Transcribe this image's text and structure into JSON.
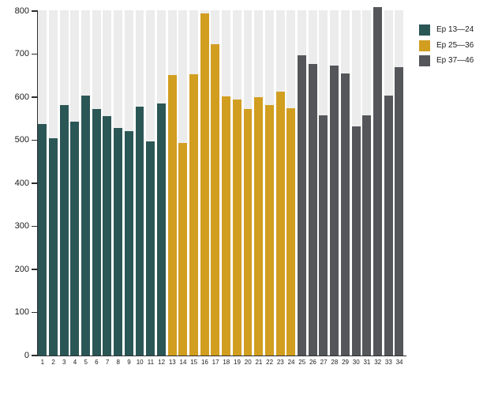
{
  "chart_data": {
    "type": "bar",
    "title": "",
    "xlabel": "",
    "ylabel": "",
    "categories": [
      "1",
      "2",
      "3",
      "4",
      "5",
      "6",
      "7",
      "8",
      "9",
      "10",
      "11",
      "12",
      "13",
      "14",
      "15",
      "16",
      "17",
      "18",
      "19",
      "20",
      "21",
      "22",
      "23",
      "24",
      "25",
      "26",
      "27",
      "28",
      "29",
      "30",
      "31",
      "32",
      "33",
      "34"
    ],
    "values": [
      537,
      505,
      581,
      544,
      603,
      573,
      556,
      529,
      521,
      578,
      497,
      585,
      652,
      493,
      654,
      795,
      723,
      602,
      594,
      573,
      600,
      581,
      613,
      574,
      698,
      678,
      557,
      674,
      655,
      532,
      558,
      810,
      604,
      670
    ],
    "groups": [
      {
        "label": "Ep 13—24",
        "color": "#2b5656",
        "from_index": 1,
        "to_index": 12
      },
      {
        "label": "Ep 25—36",
        "color": "#d19e20",
        "from_index": 13,
        "to_index": 24
      },
      {
        "label": "Ep 37—46",
        "color": "#54565a",
        "from_index": 25,
        "to_index": 34
      }
    ],
    "ylim": [
      0,
      800
    ],
    "yticks": [
      0,
      100,
      200,
      300,
      400,
      500,
      600,
      700,
      800
    ],
    "grid": "off",
    "background_column_stripes": true,
    "legend_position": "top-right"
  },
  "legend": {
    "items": [
      {
        "label": "Ep 13—24",
        "color": "#2b5656"
      },
      {
        "label": "Ep 25—36",
        "color": "#d19e20"
      },
      {
        "label": "Ep 37—46",
        "color": "#54565a"
      }
    ]
  },
  "colors": {
    "background": "#ffffff",
    "stripe": "#ececec",
    "axis": "#2e2e2e",
    "text": "#1a1a1a"
  }
}
